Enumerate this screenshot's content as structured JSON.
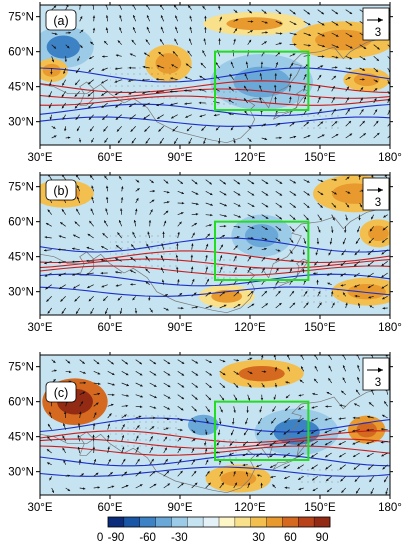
{
  "panels": [
    {
      "label": "(a)",
      "reference_vector": "3",
      "anomaly_patches": [
        {
          "lon": 40,
          "lat": 62,
          "rlon": 13,
          "rlat": 9,
          "value": -45
        },
        {
          "lon": 125,
          "lat": 47,
          "rlon": 22,
          "rlat": 12,
          "value": -40
        },
        {
          "lon": 160,
          "lat": 65,
          "rlon": 22,
          "rlat": 8,
          "value": 15
        },
        {
          "lon": 122,
          "lat": 72,
          "rlon": 22,
          "rlat": 5,
          "value": 10
        },
        {
          "lon": 85,
          "lat": 55,
          "rlon": 10,
          "rlat": 8,
          "value": 20
        },
        {
          "lon": 35,
          "lat": 52,
          "rlon": 7,
          "rlat": 5,
          "value": 20
        },
        {
          "lon": 170,
          "lat": 48,
          "rlon": 10,
          "rlat": 5,
          "value": 15
        }
      ]
    },
    {
      "label": "(b)",
      "reference_vector": "3",
      "anomaly_patches": [
        {
          "lon": 40,
          "lat": 72,
          "rlon": 13,
          "rlat": 6,
          "value": 20
        },
        {
          "lon": 165,
          "lat": 72,
          "rlon": 18,
          "rlat": 8,
          "value": 20
        },
        {
          "lon": 125,
          "lat": 54,
          "rlon": 13,
          "rlat": 9,
          "value": -40
        },
        {
          "lon": 175,
          "lat": 55,
          "rlon": 8,
          "rlat": 6,
          "value": 15
        },
        {
          "lon": 170,
          "lat": 30,
          "rlon": 15,
          "rlat": 6,
          "value": 15
        },
        {
          "lon": 110,
          "lat": 28,
          "rlon": 12,
          "rlat": 5,
          "value": 10
        }
      ]
    },
    {
      "label": "(c)",
      "reference_vector": "3",
      "anomaly_patches": [
        {
          "lon": 45,
          "lat": 60,
          "rlon": 14,
          "rlat": 10,
          "value": 55
        },
        {
          "lon": 125,
          "lat": 72,
          "rlon": 18,
          "rlat": 6,
          "value": 25
        },
        {
          "lon": 140,
          "lat": 47,
          "rlon": 18,
          "rlat": 10,
          "value": -45
        },
        {
          "lon": 100,
          "lat": 50,
          "rlon": 12,
          "rlat": 8,
          "value": -30
        },
        {
          "lon": 170,
          "lat": 48,
          "rlon": 8,
          "rlat": 6,
          "value": 30
        },
        {
          "lon": 115,
          "lat": 27,
          "rlon": 14,
          "rlat": 6,
          "value": 20
        }
      ]
    }
  ],
  "x_ticks": [
    "30°E",
    "60°E",
    "90°E",
    "120°E",
    "150°E",
    "180°"
  ],
  "y_ticks": [
    "75°N",
    "60°N",
    "45°N",
    "30°N"
  ],
  "map_extent": {
    "lon": [
      30,
      180
    ],
    "lat": [
      20,
      80
    ]
  },
  "x_tick_values": [
    30,
    60,
    90,
    120,
    150,
    180
  ],
  "y_tick_values": [
    75,
    60,
    45,
    30
  ],
  "highlight_box": {
    "lon": [
      105,
      145
    ],
    "lat": [
      35,
      60
    ],
    "color": "#22dd22"
  },
  "colorbar": {
    "tick_labels": [
      "-90",
      "-60",
      "-30",
      "0",
      "30",
      "60",
      "90"
    ],
    "tick_values": [
      -90,
      -60,
      -30,
      0,
      30,
      60,
      90
    ],
    "levels": [
      -90,
      -75,
      -60,
      -45,
      -30,
      -15,
      -5,
      5,
      15,
      30,
      45,
      60,
      75,
      90
    ],
    "colors": [
      "#0a2c7a",
      "#1a56a6",
      "#3c82c4",
      "#6aa8d8",
      "#9ccbe8",
      "#c6e3f1",
      "#e4f2f8",
      "#fff6c8",
      "#f9e08a",
      "#f3c04f",
      "#e89a2f",
      "#d4691f",
      "#b8421a",
      "#922a14"
    ]
  },
  "contour_colors": {
    "jet_core": "#c81e1e",
    "jet_edge": "#1c2fc8"
  }
}
